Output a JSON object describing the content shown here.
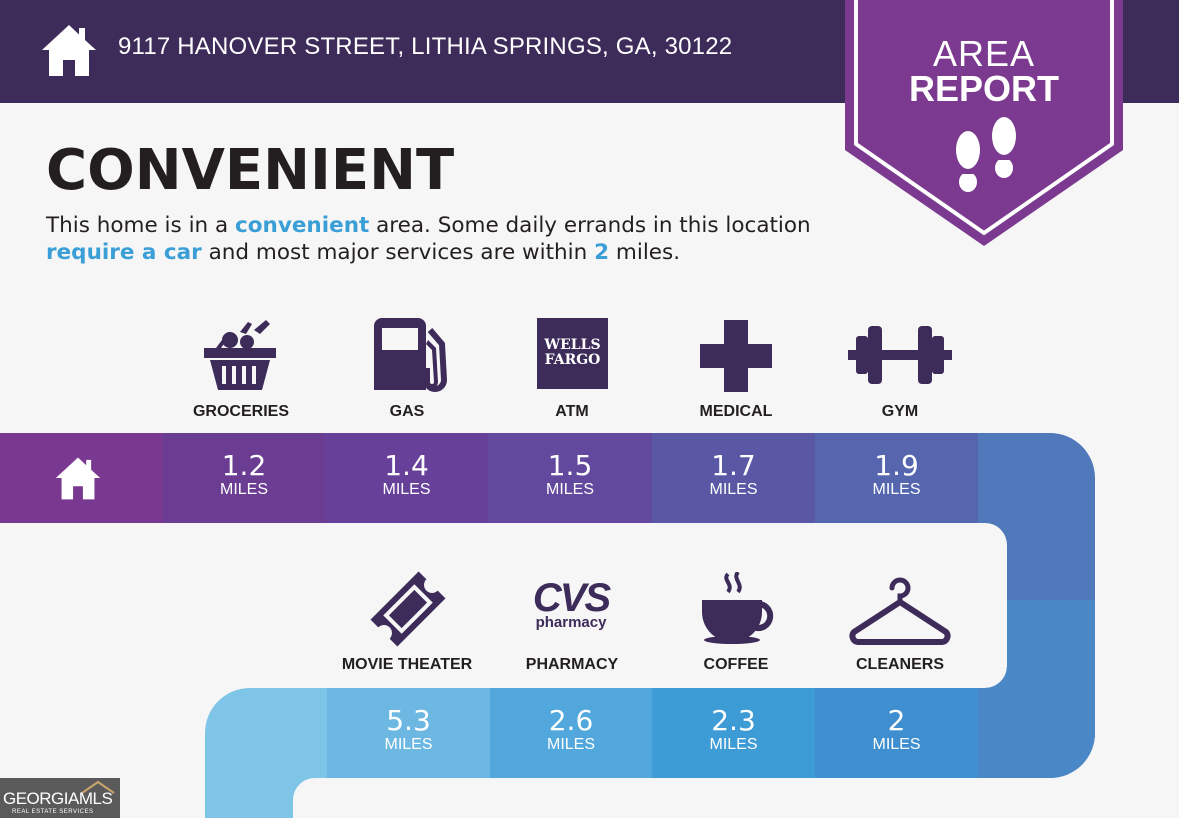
{
  "header": {
    "address": "9117 HANOVER STREET, LITHIA SPRINGS, GA, 30122",
    "home_icon": "home-icon"
  },
  "badge": {
    "line1": "AREA",
    "line2": "REPORT",
    "icon": "footprints-icon"
  },
  "headline": "CONVENIENT",
  "description": {
    "p1": "This home is in a ",
    "h1": "convenient",
    "p2": " area. Some daily errands in this location ",
    "h2": "require a car",
    "p3": " and most major services are within ",
    "h3": "2",
    "p4": " miles."
  },
  "row1": {
    "items": [
      {
        "label": "GROCERIES",
        "icon": "basket-icon",
        "distance": "1.2",
        "unit": "MILES"
      },
      {
        "label": "GAS",
        "icon": "gas-pump-icon",
        "distance": "1.4",
        "unit": "MILES"
      },
      {
        "label": "ATM",
        "icon": "wells-fargo-logo",
        "logo_line1": "WELLS",
        "logo_line2": "FARGO",
        "distance": "1.5",
        "unit": "MILES"
      },
      {
        "label": "MEDICAL",
        "icon": "medical-cross-icon",
        "distance": "1.7",
        "unit": "MILES"
      },
      {
        "label": "GYM",
        "icon": "dumbbell-icon",
        "distance": "1.9",
        "unit": "MILES"
      }
    ]
  },
  "row2": {
    "items": [
      {
        "label": "MOVIE THEATER",
        "icon": "ticket-icon",
        "distance": "5.3",
        "unit": "MILES"
      },
      {
        "label": "PHARMACY",
        "icon": "cvs-pharmacy-logo",
        "logo_line1": "CVS",
        "logo_line2": "pharmacy",
        "distance": "2.6",
        "unit": "MILES"
      },
      {
        "label": "COFFEE",
        "icon": "coffee-cup-icon",
        "distance": "2.3",
        "unit": "MILES"
      },
      {
        "label": "CLEANERS",
        "icon": "hanger-icon",
        "distance": "2",
        "unit": "MILES"
      }
    ]
  },
  "footer_logo": {
    "main": "GEORGIAMLS",
    "sub": "REAL ESTATE SERVICES"
  },
  "colors": {
    "header_bg": "#3d2b5a",
    "badge": "#7b3a90",
    "accent_blue": "#3a9fd6",
    "row1": [
      "#7a3991",
      "#6b3d92",
      "#65449a",
      "#5c55a3",
      "#5566ae",
      "#4f72b6"
    ],
    "row2": [
      "#7ec4e6",
      "#6cb8e2",
      "#52a8dc",
      "#3f9cd6",
      "#3f8dcf",
      "#4a82c3"
    ]
  }
}
